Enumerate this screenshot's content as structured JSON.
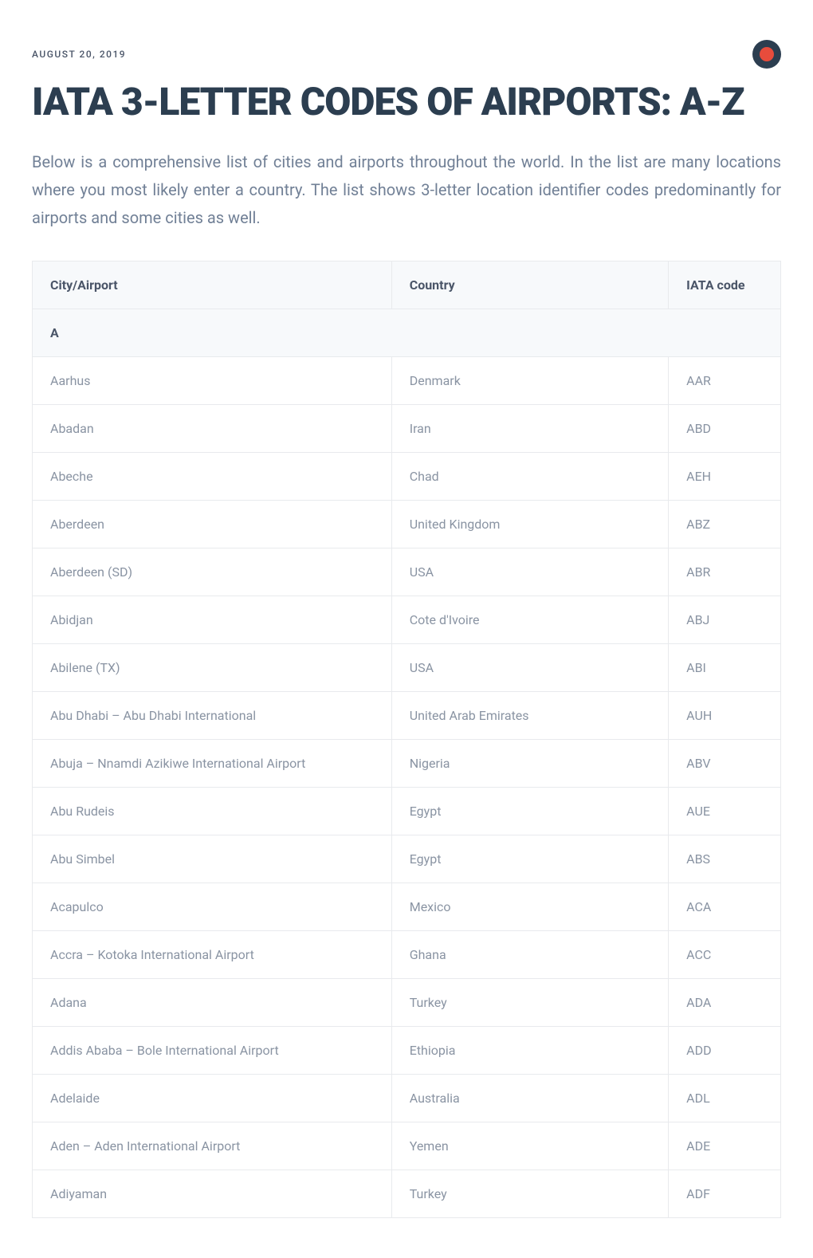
{
  "date": "AUGUST 20, 2019",
  "title": "IATA 3-LETTER CODES OF AIRPORTS: A-Z",
  "intro": "Below is a comprehensive list of cities and airports throughout the world. In the list are many locations where you most likely enter a country. The list shows 3-letter location identifier codes predominantly for airports and some cities as well.",
  "table": {
    "headers": {
      "city": "City/Airport",
      "country": "Country",
      "code": "IATA code"
    },
    "section_header": "A",
    "column_widths": {
      "city": "48%",
      "country": "37%",
      "code": "15%"
    },
    "rows": [
      {
        "city": "Aarhus",
        "country": "Denmark",
        "code": "AAR"
      },
      {
        "city": "Abadan",
        "country": "Iran",
        "code": "ABD"
      },
      {
        "city": "Abeche",
        "country": "Chad",
        "code": "AEH"
      },
      {
        "city": "Aberdeen",
        "country": "United Kingdom",
        "code": "ABZ"
      },
      {
        "city": "Aberdeen (SD)",
        "country": "USA",
        "code": "ABR"
      },
      {
        "city": "Abidjan",
        "country": "Cote d'Ivoire",
        "code": "ABJ"
      },
      {
        "city": "Abilene (TX)",
        "country": "USA",
        "code": "ABI"
      },
      {
        "city": "Abu Dhabi – Abu Dhabi International",
        "country": "United Arab Emirates",
        "code": "AUH"
      },
      {
        "city": "Abuja – Nnamdi Azikiwe International Airport",
        "country": "Nigeria",
        "code": "ABV"
      },
      {
        "city": "Abu Rudeis",
        "country": "Egypt",
        "code": "AUE"
      },
      {
        "city": "Abu Simbel",
        "country": "Egypt",
        "code": "ABS"
      },
      {
        "city": "Acapulco",
        "country": "Mexico",
        "code": "ACA"
      },
      {
        "city": "Accra – Kotoka International Airport",
        "country": "Ghana",
        "code": "ACC"
      },
      {
        "city": "Adana",
        "country": "Turkey",
        "code": "ADA"
      },
      {
        "city": "Addis Ababa – Bole International Airport",
        "country": "Ethiopia",
        "code": "ADD"
      },
      {
        "city": "Adelaide",
        "country": "Australia",
        "code": "ADL"
      },
      {
        "city": "Aden – Aden International Airport",
        "country": "Yemen",
        "code": "ADE"
      },
      {
        "city": "Adiyaman",
        "country": "Turkey",
        "code": "ADF"
      }
    ]
  },
  "colors": {
    "text_primary": "#2c3e50",
    "text_secondary": "#718096",
    "text_data": "#8a94a3",
    "badge_bg": "#2c3e50",
    "badge_inner": "#e74c3c",
    "border": "#e8eaed",
    "header_bg": "#f7f9fb"
  },
  "typography": {
    "date_fontsize": 12,
    "title_fontsize": 48,
    "intro_fontsize": 20,
    "table_fontsize": 16
  }
}
